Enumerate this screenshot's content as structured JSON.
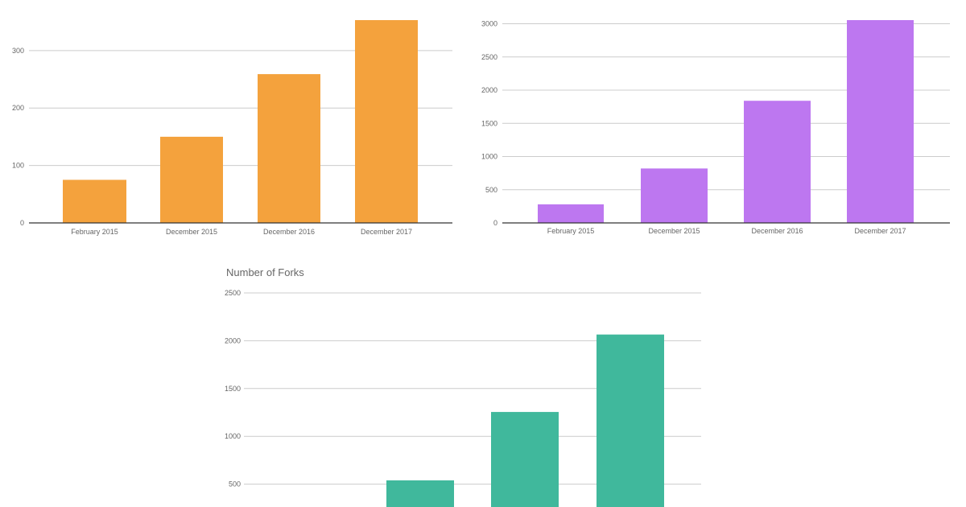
{
  "chart_data": [
    {
      "type": "bar",
      "title": "",
      "categories": [
        "February 2015",
        "December 2015",
        "December 2016",
        "December 2017"
      ],
      "values": [
        75,
        150,
        259,
        353
      ],
      "yticks": [
        0,
        100,
        200,
        300
      ],
      "ylim": [
        0,
        353
      ],
      "color": "#f4a23d",
      "grid": true,
      "legend": "none"
    },
    {
      "type": "bar",
      "title": "",
      "categories": [
        "February 2015",
        "December 2015",
        "December 2016",
        "December 2017"
      ],
      "values": [
        280,
        820,
        1840,
        3055
      ],
      "yticks": [
        0,
        500,
        1000,
        1500,
        2000,
        2500,
        3000
      ],
      "ylim": [
        0,
        3055
      ],
      "color": "#bd77f0",
      "grid": true,
      "legend": "none"
    },
    {
      "type": "bar",
      "title": "Number of Forks",
      "categories": [
        "",
        "",
        "",
        ""
      ],
      "values": [
        0,
        540,
        1255,
        2065
      ],
      "yticks": [
        500,
        1000,
        1500,
        2000,
        2500
      ],
      "ylim": [
        0,
        2500
      ],
      "color": "#40b89c",
      "grid": true,
      "legend": "none"
    }
  ]
}
